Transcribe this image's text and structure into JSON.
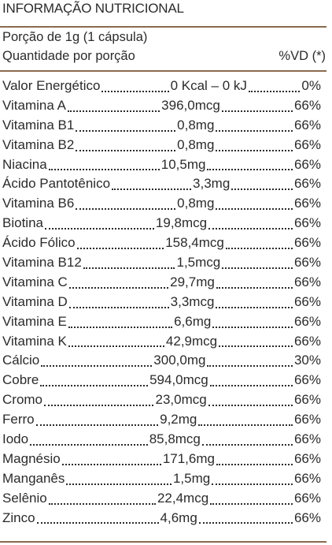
{
  "header": {
    "title": "INFORMAÇÃO NUTRICIONAL",
    "serving": "Porção de 1g (1 cápsula)",
    "quantity_label": "Quantidade por porção",
    "dv_label": "%VD (*)"
  },
  "table": {
    "rows": [
      [
        "Valor Energético",
        "0 Kcal – 0 kJ",
        "0%"
      ],
      [
        "Vitamina A",
        "396,0mcg",
        "66%"
      ],
      [
        "Vitamina B1",
        "0,8mg",
        "66%"
      ],
      [
        "Vitamina B2",
        "0,8mg",
        "66%"
      ],
      [
        "Niacina",
        "10,5mg",
        "66%"
      ],
      [
        "Ácido Pantotênico",
        "3,3mg",
        "66%"
      ],
      [
        "Vitamina B6",
        "0,8mg",
        "66%"
      ],
      [
        "Biotina",
        "19,8mcg",
        "66%"
      ],
      [
        "Ácido Fólico",
        "158,4mcg",
        "66%"
      ],
      [
        "Vitamina B12",
        "1,5mcg",
        "66%"
      ],
      [
        "Vitamina C",
        "29,7mg",
        "66%"
      ],
      [
        "Vitamina D",
        "3,3mcg",
        "66%"
      ],
      [
        "Vitamina E",
        "6,6mg",
        "66%"
      ],
      [
        "Vitamina K",
        "42,9mcg",
        "66%"
      ],
      [
        "Cálcio",
        "300,0mg",
        "30%"
      ],
      [
        "Cobre",
        "594,0mcg",
        "66%"
      ],
      [
        "Cromo",
        "23,0mcg",
        "66%"
      ],
      [
        "Ferro",
        "9,2mg",
        "66%"
      ],
      [
        "Iodo",
        "85,8mcg",
        "66%"
      ],
      [
        "Magnésio",
        "171,6mg",
        "66%"
      ],
      [
        "Manganês",
        "1,5mg",
        "66%"
      ],
      [
        "Selênio",
        "22,4mcg",
        "66%"
      ],
      [
        "Zinco",
        "4,6mg",
        "66%"
      ]
    ]
  }
}
